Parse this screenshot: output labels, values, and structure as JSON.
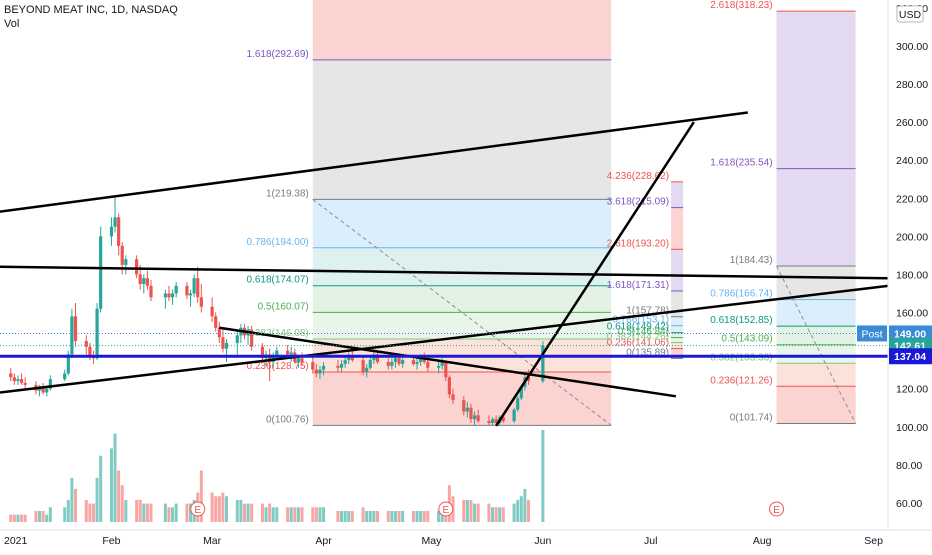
{
  "header": {
    "symbol_line": "BEYOND MEAT INC, 1D, NASDAQ",
    "volume_label": "Vol"
  },
  "colors": {
    "up": "#26a69a",
    "down": "#ef5350",
    "vol_up": "#80cbc4",
    "vol_down": "#f7a6a4",
    "fib_red": "#fbd3d1",
    "fib_purple": "#e3daf2",
    "fib_grey": "#e6e6e6",
    "fib_blue": "#dbeefb",
    "fib_green": "#e4f3e5",
    "trendline": "#000000",
    "horizontal_line": "#1a1ad6",
    "post_badge": "#3a8ad6",
    "last_badge": "#1a1ad6",
    "axis_text": "#131722",
    "grid": "#e0e3eb"
  },
  "chart_data": {
    "type": "candlestick",
    "title": "BEYOND MEAT INC, 1D, NASDAQ",
    "y_axis": {
      "unit": "USD",
      "ticks": [
        60,
        80,
        100,
        120,
        140,
        160,
        180,
        200,
        220,
        240,
        260,
        280,
        300,
        320
      ],
      "tick_labels": [
        "60.00",
        "80.00",
        "100.00",
        "120.00",
        "140.00",
        "160.00",
        "180.00",
        "200.00",
        "220.00",
        "240.00",
        "260.00",
        "280.00",
        "300.00",
        "320.00"
      ],
      "range": [
        50,
        322
      ]
    },
    "x_axis": {
      "labels": [
        "2021",
        "Feb",
        "Mar",
        "Apr",
        "May",
        "Jun",
        "Jul",
        "Aug",
        "Sep"
      ],
      "dates": [
        "2021-01-01",
        "2021-02-01",
        "2021-03-01",
        "2021-04-01",
        "2021-05-01",
        "2021-06-01",
        "2021-07-01",
        "2021-08-01",
        "2021-09-01"
      ],
      "range": [
        "2021-01-01",
        "2021-09-05"
      ]
    },
    "price_badges": [
      {
        "label": "Post",
        "value": "149.00",
        "price": 149.0
      },
      {
        "label": "",
        "value": "142.61",
        "price": 142.61
      },
      {
        "label": "",
        "value": "137.04",
        "price": 137.04
      }
    ],
    "horizontal_line": {
      "price": 137.04
    },
    "earnings_markers": [
      {
        "label": "E",
        "date": "2021-02-25"
      },
      {
        "label": "E",
        "date": "2021-05-05"
      },
      {
        "label": "E",
        "date": "2021-08-05"
      }
    ],
    "fib_retracement": {
      "start_date": "2021-03-29",
      "end_date": "2021-06-20",
      "levels": [
        {
          "label": "0(100.76)",
          "price": 100.76
        },
        {
          "label": "0.236(128.75)",
          "price": 128.75
        },
        {
          "label": "0.382(146.08)",
          "price": 146.08
        },
        {
          "label": "0.5(160.07)",
          "price": 160.07
        },
        {
          "label": "0.618(174.07)",
          "price": 174.07
        },
        {
          "label": "0.786(194.00)",
          "price": 194.0
        },
        {
          "label": "1(219.38)",
          "price": 219.38
        },
        {
          "label": "1.618(292.69)",
          "price": 292.69
        }
      ]
    },
    "fib_extension": {
      "start_date": "2021-06-20",
      "end_date": "2021-07-10",
      "levels": [
        {
          "label": "0(135.89)",
          "price": 135.89
        },
        {
          "label": "0.236(141.06)",
          "price": 141.06
        },
        {
          "label": "0.382(144.26)",
          "price": 144.26
        },
        {
          "label": "0.5(146.84)",
          "price": 146.84
        },
        {
          "label": "0.618(149.42)",
          "price": 149.42
        },
        {
          "label": "0.786(153.1)",
          "price": 153.1
        },
        {
          "label": "1(157.78)",
          "price": 157.78
        },
        {
          "label": "1.618(171.31)",
          "price": 171.31
        },
        {
          "label": "2.618(193.20)",
          "price": 193.2
        },
        {
          "label": "3.618(215.09)",
          "price": 215.09
        },
        {
          "label": "4.236(228.62)",
          "price": 228.62
        }
      ]
    },
    "fib_retracement_2": {
      "start_date": "2021-08-05",
      "end_date": "2021-08-27",
      "levels": [
        {
          "label": "0(101.74)",
          "price": 101.74
        },
        {
          "label": "0.236(121.26)",
          "price": 121.26
        },
        {
          "label": "0.382(133.33)",
          "price": 133.33
        },
        {
          "label": "0.5(143.09)",
          "price": 143.09
        },
        {
          "label": "0.618(152.85)",
          "price": 152.85
        },
        {
          "label": "0.786(166.74)",
          "price": 166.74
        },
        {
          "label": "1(184.43)",
          "price": 184.43
        },
        {
          "label": "1.618(235.54)",
          "price": 235.54
        },
        {
          "label": "2.618(318.23)",
          "price": 318.23
        }
      ]
    },
    "trendlines": [
      {
        "from": {
          "date": "2021-01-01",
          "price": 213
        },
        "to": {
          "date": "2021-07-28",
          "price": 265
        }
      },
      {
        "from": {
          "date": "2021-01-01",
          "price": 118
        },
        "to": {
          "date": "2021-09-05",
          "price": 174
        }
      },
      {
        "from": {
          "date": "2021-01-01",
          "price": 184
        },
        "to": {
          "date": "2021-09-05",
          "price": 178
        }
      },
      {
        "from": {
          "date": "2021-03-03",
          "price": 152
        },
        "to": {
          "date": "2021-07-08",
          "price": 116
        }
      },
      {
        "from": {
          "date": "2021-05-19",
          "price": 100.5
        },
        "to": {
          "date": "2021-07-13",
          "price": 260
        }
      }
    ],
    "candles": [
      {
        "d": "2021-01-04",
        "o": 128,
        "h": 131,
        "l": 124,
        "c": 126,
        "v": 2
      },
      {
        "d": "2021-01-05",
        "o": 126,
        "h": 128,
        "l": 122,
        "c": 124,
        "v": 2
      },
      {
        "d": "2021-01-06",
        "o": 124,
        "h": 127,
        "l": 122,
        "c": 125,
        "v": 2
      },
      {
        "d": "2021-01-07",
        "o": 125,
        "h": 128,
        "l": 122,
        "c": 123,
        "v": 2
      },
      {
        "d": "2021-01-08",
        "o": 123,
        "h": 126,
        "l": 120,
        "c": 122,
        "v": 2
      },
      {
        "d": "2021-01-11",
        "o": 122,
        "h": 124,
        "l": 117,
        "c": 119,
        "v": 3
      },
      {
        "d": "2021-01-12",
        "o": 119,
        "h": 122,
        "l": 116,
        "c": 121,
        "v": 3
      },
      {
        "d": "2021-01-13",
        "o": 121,
        "h": 123,
        "l": 117,
        "c": 118,
        "v": 3
      },
      {
        "d": "2021-01-14",
        "o": 118,
        "h": 121,
        "l": 116,
        "c": 120,
        "v": 2
      },
      {
        "d": "2021-01-15",
        "o": 120,
        "h": 127,
        "l": 119,
        "c": 125,
        "v": 4
      },
      {
        "d": "2021-01-19",
        "o": 125,
        "h": 130,
        "l": 124,
        "c": 128,
        "v": 4
      },
      {
        "d": "2021-01-20",
        "o": 128,
        "h": 140,
        "l": 127,
        "c": 138,
        "v": 6
      },
      {
        "d": "2021-01-21",
        "o": 138,
        "h": 162,
        "l": 136,
        "c": 158,
        "v": 12
      },
      {
        "d": "2021-01-22",
        "o": 158,
        "h": 165,
        "l": 142,
        "c": 145,
        "v": 9
      },
      {
        "d": "2021-01-25",
        "o": 145,
        "h": 148,
        "l": 138,
        "c": 142,
        "v": 6
      },
      {
        "d": "2021-01-26",
        "o": 142,
        "h": 144,
        "l": 135,
        "c": 137,
        "v": 5
      },
      {
        "d": "2021-01-27",
        "o": 137,
        "h": 140,
        "l": 133,
        "c": 136,
        "v": 5
      },
      {
        "d": "2021-01-28",
        "o": 136,
        "h": 165,
        "l": 135,
        "c": 162,
        "v": 12
      },
      {
        "d": "2021-01-29",
        "o": 162,
        "h": 205,
        "l": 160,
        "c": 200,
        "v": 18
      },
      {
        "d": "2021-02-01",
        "o": 200,
        "h": 210,
        "l": 195,
        "c": 205,
        "v": 20
      },
      {
        "d": "2021-02-02",
        "o": 205,
        "h": 221,
        "l": 202,
        "c": 210,
        "v": 24
      },
      {
        "d": "2021-02-03",
        "o": 210,
        "h": 212,
        "l": 190,
        "c": 195,
        "v": 14
      },
      {
        "d": "2021-02-04",
        "o": 195,
        "h": 197,
        "l": 180,
        "c": 185,
        "v": 10
      },
      {
        "d": "2021-02-05",
        "o": 185,
        "h": 190,
        "l": 180,
        "c": 188,
        "v": 6
      },
      {
        "d": "2021-02-08",
        "o": 188,
        "h": 190,
        "l": 178,
        "c": 180,
        "v": 6
      },
      {
        "d": "2021-02-09",
        "o": 180,
        "h": 185,
        "l": 172,
        "c": 175,
        "v": 6
      },
      {
        "d": "2021-02-10",
        "o": 175,
        "h": 180,
        "l": 170,
        "c": 178,
        "v": 5
      },
      {
        "d": "2021-02-11",
        "o": 178,
        "h": 182,
        "l": 172,
        "c": 174,
        "v": 5
      },
      {
        "d": "2021-02-12",
        "o": 174,
        "h": 177,
        "l": 166,
        "c": 168,
        "v": 5
      },
      {
        "d": "2021-02-16",
        "o": 168,
        "h": 172,
        "l": 162,
        "c": 170,
        "v": 5
      },
      {
        "d": "2021-02-17",
        "o": 170,
        "h": 174,
        "l": 166,
        "c": 168,
        "v": 4
      },
      {
        "d": "2021-02-18",
        "o": 168,
        "h": 172,
        "l": 164,
        "c": 170,
        "v": 4
      },
      {
        "d": "2021-02-19",
        "o": 170,
        "h": 176,
        "l": 168,
        "c": 174,
        "v": 5
      },
      {
        "d": "2021-02-22",
        "o": 174,
        "h": 176,
        "l": 167,
        "c": 169,
        "v": 5
      },
      {
        "d": "2021-02-23",
        "o": 169,
        "h": 172,
        "l": 163,
        "c": 170,
        "v": 5
      },
      {
        "d": "2021-02-24",
        "o": 170,
        "h": 180,
        "l": 168,
        "c": 178,
        "v": 6
      },
      {
        "d": "2021-02-25",
        "o": 178,
        "h": 184,
        "l": 165,
        "c": 168,
        "v": 8
      },
      {
        "d": "2021-02-26",
        "o": 168,
        "h": 175,
        "l": 160,
        "c": 163,
        "v": 14
      },
      {
        "d": "2021-03-01",
        "o": 163,
        "h": 168,
        "l": 155,
        "c": 158,
        "v": 8
      },
      {
        "d": "2021-03-02",
        "o": 158,
        "h": 160,
        "l": 150,
        "c": 152,
        "v": 7
      },
      {
        "d": "2021-03-03",
        "o": 152,
        "h": 155,
        "l": 144,
        "c": 147,
        "v": 7
      },
      {
        "d": "2021-03-04",
        "o": 147,
        "h": 152,
        "l": 139,
        "c": 141,
        "v": 8
      },
      {
        "d": "2021-03-05",
        "o": 141,
        "h": 146,
        "l": 134,
        "c": 144,
        "v": 7
      },
      {
        "d": "2021-03-08",
        "o": 144,
        "h": 150,
        "l": 138,
        "c": 148,
        "v": 6
      },
      {
        "d": "2021-03-09",
        "o": 148,
        "h": 154,
        "l": 144,
        "c": 152,
        "v": 6
      },
      {
        "d": "2021-03-10",
        "o": 152,
        "h": 154,
        "l": 146,
        "c": 148,
        "v": 5
      },
      {
        "d": "2021-03-11",
        "o": 148,
        "h": 153,
        "l": 143,
        "c": 151,
        "v": 5
      },
      {
        "d": "2021-03-12",
        "o": 151,
        "h": 153,
        "l": 140,
        "c": 142,
        "v": 5
      },
      {
        "d": "2021-03-15",
        "o": 142,
        "h": 144,
        "l": 134,
        "c": 136,
        "v": 5
      },
      {
        "d": "2021-03-16",
        "o": 136,
        "h": 140,
        "l": 132,
        "c": 138,
        "v": 4
      },
      {
        "d": "2021-03-17",
        "o": 138,
        "h": 141,
        "l": 124,
        "c": 134,
        "v": 5
      },
      {
        "d": "2021-03-18",
        "o": 134,
        "h": 139,
        "l": 131,
        "c": 137,
        "v": 4
      },
      {
        "d": "2021-03-19",
        "o": 137,
        "h": 142,
        "l": 135,
        "c": 140,
        "v": 4
      },
      {
        "d": "2021-03-22",
        "o": 140,
        "h": 143,
        "l": 136,
        "c": 138,
        "v": 4
      },
      {
        "d": "2021-03-23",
        "o": 138,
        "h": 142,
        "l": 134,
        "c": 139,
        "v": 4
      },
      {
        "d": "2021-03-24",
        "o": 139,
        "h": 141,
        "l": 133,
        "c": 134,
        "v": 4
      },
      {
        "d": "2021-03-25",
        "o": 134,
        "h": 138,
        "l": 131,
        "c": 136,
        "v": 4
      },
      {
        "d": "2021-03-26",
        "o": 136,
        "h": 139,
        "l": 132,
        "c": 134,
        "v": 4
      },
      {
        "d": "2021-03-29",
        "o": 134,
        "h": 137,
        "l": 128,
        "c": 130,
        "v": 4
      },
      {
        "d": "2021-03-30",
        "o": 130,
        "h": 133,
        "l": 126,
        "c": 128,
        "v": 4
      },
      {
        "d": "2021-03-31",
        "o": 128,
        "h": 132,
        "l": 125,
        "c": 130,
        "v": 4
      },
      {
        "d": "2021-04-01",
        "o": 130,
        "h": 134,
        "l": 127,
        "c": 132,
        "v": 4
      },
      {
        "d": "2021-04-05",
        "o": 132,
        "h": 135,
        "l": 129,
        "c": 131,
        "v": 3
      },
      {
        "d": "2021-04-06",
        "o": 131,
        "h": 135,
        "l": 129,
        "c": 133,
        "v": 3
      },
      {
        "d": "2021-04-07",
        "o": 133,
        "h": 137,
        "l": 131,
        "c": 135,
        "v": 3
      },
      {
        "d": "2021-04-08",
        "o": 135,
        "h": 139,
        "l": 133,
        "c": 137,
        "v": 3
      },
      {
        "d": "2021-04-09",
        "o": 137,
        "h": 140,
        "l": 134,
        "c": 135,
        "v": 3
      },
      {
        "d": "2021-04-12",
        "o": 135,
        "h": 137,
        "l": 127,
        "c": 129,
        "v": 4
      },
      {
        "d": "2021-04-13",
        "o": 129,
        "h": 133,
        "l": 126,
        "c": 131,
        "v": 3
      },
      {
        "d": "2021-04-14",
        "o": 131,
        "h": 137,
        "l": 130,
        "c": 135,
        "v": 3
      },
      {
        "d": "2021-04-15",
        "o": 135,
        "h": 140,
        "l": 133,
        "c": 138,
        "v": 3
      },
      {
        "d": "2021-04-16",
        "o": 138,
        "h": 140,
        "l": 133,
        "c": 134,
        "v": 3
      },
      {
        "d": "2021-04-19",
        "o": 134,
        "h": 136,
        "l": 130,
        "c": 132,
        "v": 3
      },
      {
        "d": "2021-04-20",
        "o": 132,
        "h": 136,
        "l": 130,
        "c": 134,
        "v": 3
      },
      {
        "d": "2021-04-21",
        "o": 134,
        "h": 137,
        "l": 131,
        "c": 136,
        "v": 3
      },
      {
        "d": "2021-04-22",
        "o": 136,
        "h": 138,
        "l": 132,
        "c": 133,
        "v": 3
      },
      {
        "d": "2021-04-23",
        "o": 133,
        "h": 136,
        "l": 131,
        "c": 135,
        "v": 3
      },
      {
        "d": "2021-04-26",
        "o": 135,
        "h": 137,
        "l": 132,
        "c": 133,
        "v": 3
      },
      {
        "d": "2021-04-27",
        "o": 133,
        "h": 136,
        "l": 130,
        "c": 134,
        "v": 3
      },
      {
        "d": "2021-04-28",
        "o": 134,
        "h": 138,
        "l": 132,
        "c": 136,
        "v": 3
      },
      {
        "d": "2021-04-29",
        "o": 136,
        "h": 139,
        "l": 133,
        "c": 134,
        "v": 3
      },
      {
        "d": "2021-04-30",
        "o": 134,
        "h": 136,
        "l": 129,
        "c": 131,
        "v": 3
      },
      {
        "d": "2021-05-03",
        "o": 131,
        "h": 134,
        "l": 128,
        "c": 132,
        "v": 3
      },
      {
        "d": "2021-05-04",
        "o": 132,
        "h": 136,
        "l": 130,
        "c": 134,
        "v": 3
      },
      {
        "d": "2021-05-05",
        "o": 134,
        "h": 135,
        "l": 124,
        "c": 126,
        "v": 5
      },
      {
        "d": "2021-05-06",
        "o": 126,
        "h": 127,
        "l": 115,
        "c": 117,
        "v": 10
      },
      {
        "d": "2021-05-07",
        "o": 117,
        "h": 120,
        "l": 112,
        "c": 114,
        "v": 7
      },
      {
        "d": "2021-05-10",
        "o": 114,
        "h": 116,
        "l": 106,
        "c": 108,
        "v": 6
      },
      {
        "d": "2021-05-11",
        "o": 108,
        "h": 113,
        "l": 105,
        "c": 110,
        "v": 6
      },
      {
        "d": "2021-05-12",
        "o": 110,
        "h": 112,
        "l": 102,
        "c": 104,
        "v": 6
      },
      {
        "d": "2021-05-13",
        "o": 104,
        "h": 108,
        "l": 101,
        "c": 106,
        "v": 5
      },
      {
        "d": "2021-05-14",
        "o": 106,
        "h": 109,
        "l": 102,
        "c": 103,
        "v": 5
      },
      {
        "d": "2021-05-17",
        "o": 103,
        "h": 106,
        "l": 100.8,
        "c": 102,
        "v": 5
      },
      {
        "d": "2021-05-18",
        "o": 102,
        "h": 105,
        "l": 100.8,
        "c": 104,
        "v": 4
      },
      {
        "d": "2021-05-19",
        "o": 104,
        "h": 106,
        "l": 101,
        "c": 102,
        "v": 4
      },
      {
        "d": "2021-05-20",
        "o": 102,
        "h": 106,
        "l": 101,
        "c": 105,
        "v": 4
      },
      {
        "d": "2021-05-21",
        "o": 105,
        "h": 107,
        "l": 102,
        "c": 103,
        "v": 4
      },
      {
        "d": "2021-05-24",
        "o": 103,
        "h": 110,
        "l": 102,
        "c": 109,
        "v": 5
      },
      {
        "d": "2021-05-25",
        "o": 109,
        "h": 116,
        "l": 108,
        "c": 115,
        "v": 6
      },
      {
        "d": "2021-05-26",
        "o": 115,
        "h": 122,
        "l": 114,
        "c": 121,
        "v": 7
      },
      {
        "d": "2021-05-27",
        "o": 121,
        "h": 128,
        "l": 119,
        "c": 126,
        "v": 9
      },
      {
        "d": "2021-05-28",
        "o": 126,
        "h": 130,
        "l": 122,
        "c": 124,
        "v": 6
      },
      {
        "d": "2021-06-01",
        "o": 124,
        "h": 145,
        "l": 123,
        "c": 142.6,
        "v": 25
      }
    ]
  }
}
